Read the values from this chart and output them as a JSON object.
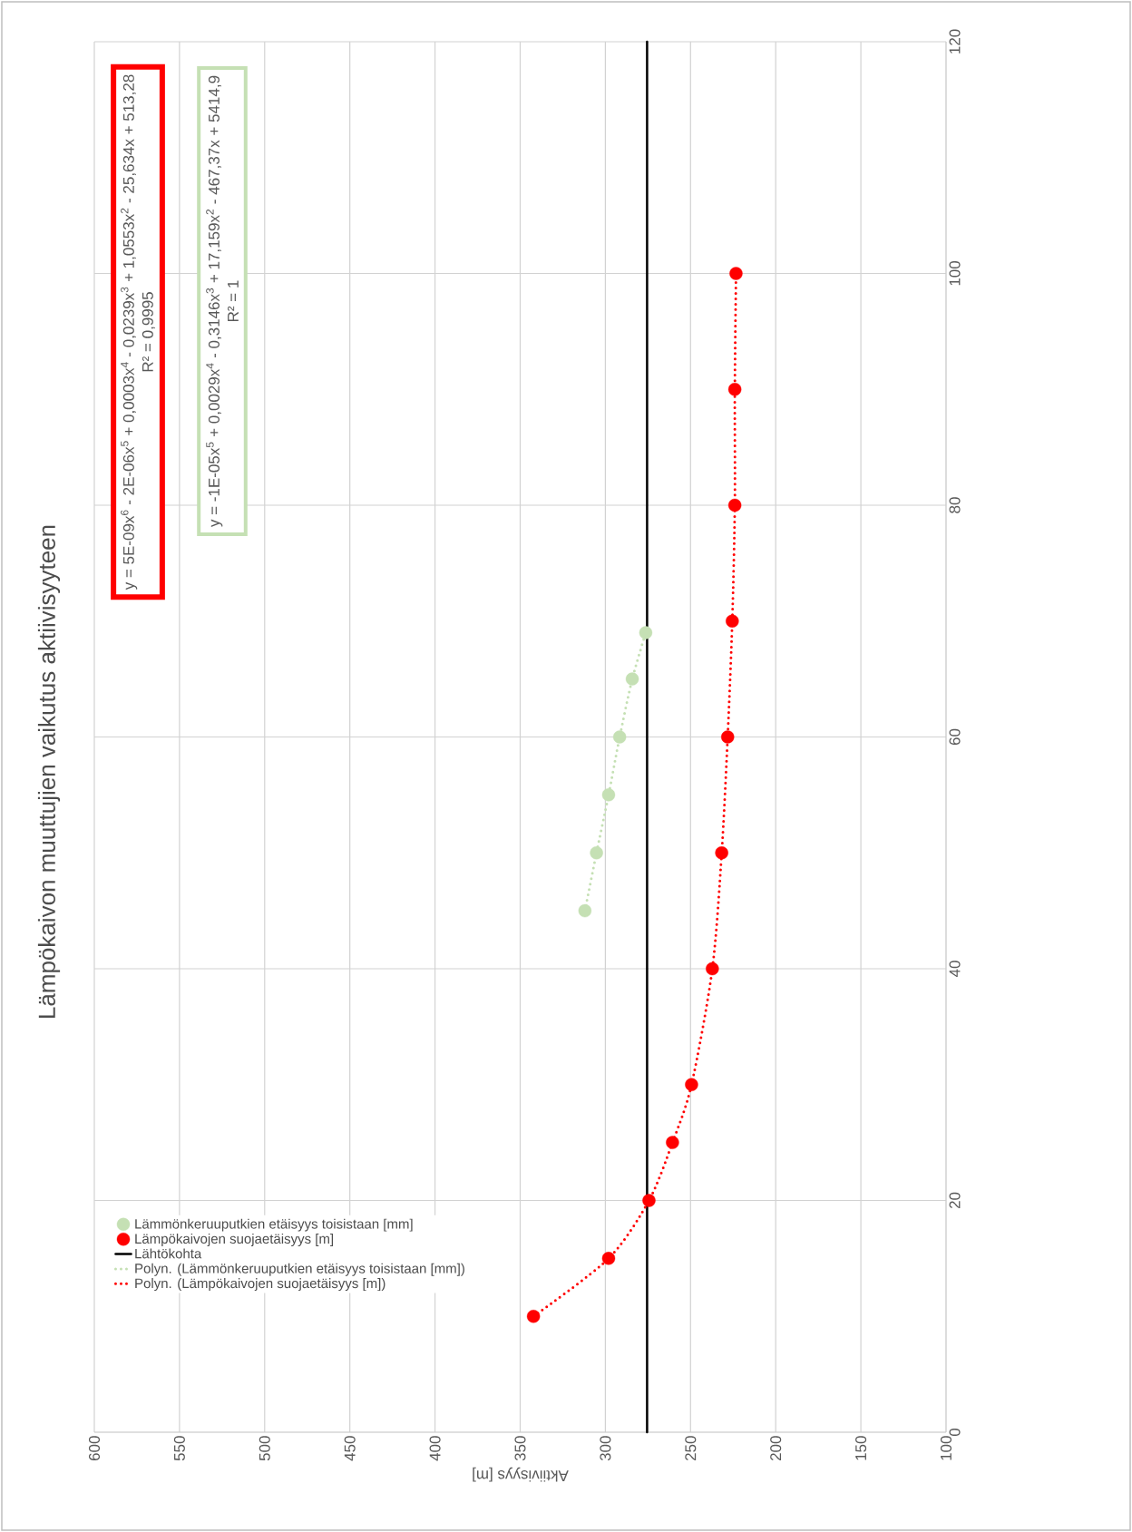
{
  "chart_data": {
    "type": "scatter",
    "title": "Lämpökaivon muuttujien vaikutus aktiivisyyteen",
    "xlabel": "Aktiivisyys [m]",
    "xlim": [
      600,
      100
    ],
    "xticks": [
      600,
      550,
      500,
      450,
      400,
      350,
      300,
      250,
      200,
      150,
      100
    ],
    "ylim": [
      0,
      120
    ],
    "yticks": [
      0,
      20,
      40,
      60,
      80,
      100,
      120
    ],
    "grid": true,
    "legend": "bottom left",
    "series": [
      {
        "name": "Lämmönkeruuputkien etäisyys toisistaan [mm]",
        "type": "scatter",
        "marker": "circle",
        "color": "#c5e0b4",
        "x": [
          312,
          305.2,
          298.1,
          291.6,
          284.2,
          276.3
        ],
        "values": [
          45,
          50,
          55,
          60,
          65,
          69
        ]
      },
      {
        "name": "Lämpökaivojen suojaetäisyys [m]",
        "type": "scatter",
        "marker": "circle",
        "color": "#ff0000",
        "x": [
          342.2,
          298.1,
          274.4,
          260.6,
          249.4,
          237.2,
          231.7,
          228.2,
          225.5,
          224,
          224,
          223.3
        ],
        "values": [
          10,
          15,
          20,
          25,
          30,
          40,
          50,
          60,
          70,
          80,
          90,
          100
        ]
      },
      {
        "name": "Lähtökohta",
        "type": "line",
        "color": "#000000",
        "marker": "none",
        "line_style": "solid",
        "x": [
          275.5,
          275.5
        ],
        "values": [
          0,
          120
        ]
      },
      {
        "name": "Polyn. (Lämmönkeruuputkien etäisyys toisistaan [mm])",
        "type": "line",
        "color": "#c5e0b4",
        "marker": "none",
        "line_style": "dotted",
        "x": [
          312,
          305.2,
          298.1,
          291.6,
          284.2,
          276.3
        ],
        "values": [
          45,
          50,
          55,
          60,
          65,
          69
        ]
      },
      {
        "name": "Polyn. (Lämpökaivojen suojaetäisyys [m])",
        "type": "line",
        "color": "#ff0000",
        "marker": "none",
        "line_style": "dotted",
        "x": [
          342.2,
          298.1,
          274.4,
          260.6,
          249.4,
          237.2,
          231.7,
          228.2,
          225.5,
          224,
          224,
          223.3
        ],
        "values": [
          10,
          15,
          20,
          25,
          30,
          40,
          50,
          60,
          70,
          80,
          90,
          100
        ]
      }
    ],
    "annotations": [
      "y = 5E-09x$^{6}$ - 2E-06x$^{5}$ + 0,0003x$^{4}$ - 0,0239x$^{3}$ + 1,0553x$^{2}$ - 25,634x + 513,28",
      "R² = 0,9995",
      "y = -1E-05x$^{5}$ + 0,0029x$^{4}$ - 0,3146x$^{3}$ + 17,159x$^{2}$ - 467,37x + 5414,9",
      "R² = 1"
    ]
  }
}
